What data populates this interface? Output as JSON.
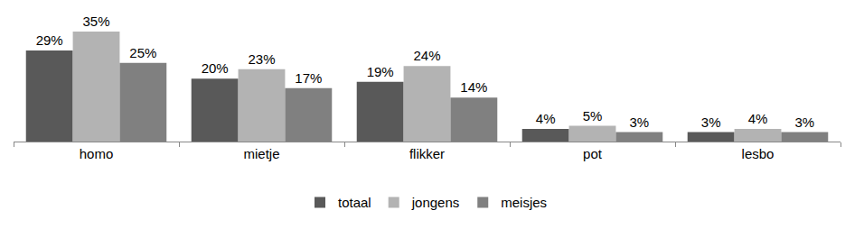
{
  "chart_data": {
    "type": "bar",
    "categories": [
      "homo",
      "mietje",
      "flikker",
      "pot",
      "lesbo"
    ],
    "series": [
      {
        "name": "totaal",
        "color": "#595959",
        "values": [
          29,
          20,
          19,
          4,
          3
        ],
        "value_labels": [
          "29%",
          "20%",
          "19%",
          "4%",
          "3%"
        ]
      },
      {
        "name": "jongens",
        "color": "#b3b3b3",
        "values": [
          35,
          23,
          24,
          5,
          4
        ],
        "value_labels": [
          "35%",
          "23%",
          "24%",
          "5%",
          "4%"
        ]
      },
      {
        "name": "meisjes",
        "color": "#808080",
        "values": [
          25,
          17,
          14,
          3,
          3
        ],
        "value_labels": [
          "25%",
          "17%",
          "14%",
          "3%",
          "3%"
        ]
      }
    ],
    "ylim": [
      0,
      35
    ],
    "data_labels": true,
    "tick_labels": "x",
    "grid": false,
    "legend": "bottom"
  }
}
